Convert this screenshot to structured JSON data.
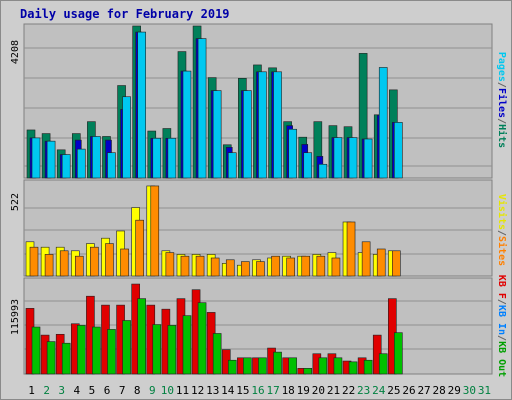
{
  "title": "Daily usage for February 2019",
  "chart_data": [
    {
      "type": "bar",
      "panel": "pages-files-hits",
      "ymax_label": "4208",
      "ylim": [
        0,
        4208
      ],
      "categories": [
        "1",
        "2",
        "3",
        "4",
        "5",
        "6",
        "7",
        "8",
        "9",
        "10",
        "11",
        "12",
        "13",
        "14",
        "15",
        "16",
        "17",
        "18",
        "19",
        "20",
        "21",
        "22",
        "23",
        "24",
        "25",
        "26",
        "27",
        "28",
        "29",
        "30",
        "31"
      ],
      "legend": [
        {
          "text": "Pages",
          "color": "#00c8f0"
        },
        {
          "text": "/",
          "color": "#666666"
        },
        {
          "text": "Files",
          "color": "#0000c8"
        },
        {
          "text": "/",
          "color": "#666666"
        },
        {
          "text": "Hits",
          "color": "#00805a"
        }
      ],
      "series": [
        {
          "name": "Hits",
          "color": "#00805a",
          "values": [
            1330,
            1230,
            780,
            1230,
            1560,
            1150,
            2560,
            4208,
            1300,
            1370,
            3500,
            4208,
            2780,
            920,
            2760,
            3130,
            3050,
            1560,
            1130,
            1560,
            1450,
            1420,
            3450,
            1750,
            2440,
            null,
            null,
            null,
            null,
            null,
            null
          ]
        },
        {
          "name": "Files",
          "color": "#0000c8",
          "values": [
            1110,
            1020,
            650,
            1050,
            1150,
            1050,
            1900,
            4040,
            1100,
            1100,
            2960,
            3860,
            2420,
            850,
            2420,
            2940,
            2940,
            1450,
            930,
            600,
            1120,
            1120,
            1080,
            1740,
            1540,
            null,
            null,
            null,
            null,
            null,
            null
          ]
        },
        {
          "name": "Pages",
          "color": "#00c8f0",
          "values": [
            1110,
            1020,
            650,
            800,
            1150,
            700,
            2250,
            4040,
            1100,
            1100,
            2960,
            3860,
            2420,
            700,
            2420,
            2940,
            2940,
            1350,
            700,
            380,
            1120,
            1120,
            1080,
            3060,
            1540,
            null,
            null,
            null,
            null,
            null,
            null
          ]
        }
      ]
    },
    {
      "type": "bar",
      "panel": "visits-sites",
      "ymax_label": "522",
      "ylim": [
        0,
        522
      ],
      "categories": [
        "1",
        "2",
        "3",
        "4",
        "5",
        "6",
        "7",
        "8",
        "9",
        "10",
        "11",
        "12",
        "13",
        "14",
        "15",
        "16",
        "17",
        "18",
        "19",
        "20",
        "21",
        "22",
        "23",
        "24",
        "25",
        "26",
        "27",
        "28",
        "29",
        "30",
        "31"
      ],
      "legend": [
        {
          "text": "Visits",
          "color": "#e6e600"
        },
        {
          "text": "/",
          "color": "#666666"
        },
        {
          "text": "Sites",
          "color": "#ff8000"
        }
      ],
      "series": [
        {
          "name": "Visits",
          "color": "#ffff00",
          "values": [
            190,
            160,
            160,
            140,
            180,
            210,
            250,
            380,
            500,
            140,
            120,
            120,
            120,
            70,
            60,
            90,
            100,
            110,
            110,
            120,
            130,
            300,
            130,
            120,
            140,
            null,
            null,
            null,
            null,
            null,
            null
          ]
        },
        {
          "name": "Sites",
          "color": "#ff8c00",
          "values": [
            160,
            120,
            140,
            110,
            160,
            180,
            150,
            310,
            500,
            130,
            110,
            110,
            100,
            90,
            80,
            80,
            110,
            100,
            110,
            110,
            100,
            300,
            190,
            150,
            140,
            null,
            null,
            null,
            null,
            null,
            null
          ]
        }
      ]
    },
    {
      "type": "bar",
      "panel": "kbf-kbin-kbout",
      "ymax_label": "115993",
      "ylim": [
        0,
        115993
      ],
      "categories": [
        "1",
        "2",
        "3",
        "4",
        "5",
        "6",
        "7",
        "8",
        "9",
        "10",
        "11",
        "12",
        "13",
        "14",
        "15",
        "16",
        "17",
        "18",
        "19",
        "20",
        "21",
        "22",
        "23",
        "24",
        "25",
        "26",
        "27",
        "28",
        "29",
        "30",
        "31"
      ],
      "legend": [
        {
          "text": "KB F",
          "color": "#e00000"
        },
        {
          "text": "/",
          "color": "#666666"
        },
        {
          "text": "KB In",
          "color": "#0080ff"
        },
        {
          "text": "/",
          "color": "#666666"
        },
        {
          "text": "KB Out",
          "color": "#00a000"
        }
      ],
      "series": [
        {
          "name": "KB F",
          "color": "#e00000",
          "values": [
            81000,
            48000,
            49000,
            62000,
            96000,
            85000,
            85000,
            111000,
            85000,
            80000,
            93000,
            104000,
            76000,
            30000,
            20000,
            20000,
            32000,
            20000,
            7000,
            25000,
            25000,
            16000,
            20000,
            48000,
            93000,
            null,
            null,
            null,
            null,
            null,
            null
          ]
        },
        {
          "name": "KB In",
          "color": "#0080ff",
          "values": [
            0,
            0,
            0,
            0,
            0,
            0,
            0,
            0,
            0,
            0,
            0,
            0,
            0,
            0,
            0,
            0,
            0,
            0,
            0,
            0,
            0,
            0,
            0,
            0,
            0,
            null,
            null,
            null,
            null,
            null,
            null
          ]
        },
        {
          "name": "KB Out",
          "color": "#00c000",
          "values": [
            58000,
            40000,
            38000,
            60000,
            58000,
            55000,
            66000,
            93000,
            61000,
            60000,
            72000,
            88000,
            50000,
            17000,
            20000,
            20000,
            27000,
            20000,
            7000,
            20000,
            20000,
            15000,
            17000,
            25000,
            51000,
            null,
            null,
            null,
            null,
            null,
            null
          ]
        }
      ]
    }
  ]
}
